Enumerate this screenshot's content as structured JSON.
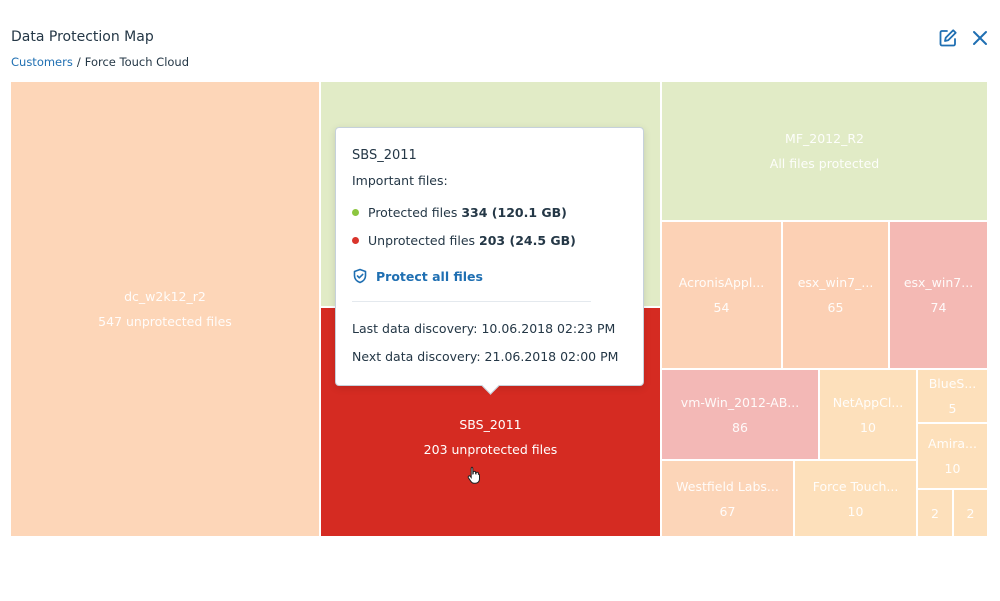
{
  "header": {
    "title": "Data Protection Map",
    "breadcrumb_root": "Customers",
    "breadcrumb_sep": "/",
    "breadcrumb_current": "Force Touch Cloud",
    "edit_icon": "edit-icon",
    "close_icon": "close-icon"
  },
  "colors": {
    "accent": "#1f6fb2",
    "protected": "#8cc63f",
    "unprotected": "#d9342b",
    "selected_tile": "#d52b22"
  },
  "tiles": [
    {
      "name": "dc_w2k12_r2",
      "detail": "547 unprotected files"
    },
    {
      "name": "SBS_2011",
      "detail": "203 unprotected files"
    },
    {
      "name": "MF_2012_R2",
      "detail": "All files protected"
    },
    {
      "name": "AcronisAppl...",
      "detail": "54"
    },
    {
      "name": "esx_win7_...",
      "detail": "65"
    },
    {
      "name": "esx_win7...",
      "detail": "74"
    },
    {
      "name": "vm-Win_2012-AB...",
      "detail": "86"
    },
    {
      "name": "NetAppCl...",
      "detail": "10"
    },
    {
      "name": "BlueS...",
      "detail": "5"
    },
    {
      "name": "Amira...",
      "detail": "10"
    },
    {
      "name": "Westfield Labs...",
      "detail": "67"
    },
    {
      "name": "Force Touch...",
      "detail": "10"
    },
    {
      "name": "",
      "detail": "2"
    },
    {
      "name": "",
      "detail": "2"
    }
  ],
  "tooltip": {
    "title": "SBS_2011",
    "subtitle": "Important files:",
    "protected_label": "Protected files",
    "protected_value": "334 (120.1 GB)",
    "unprotected_label": "Unprotected files",
    "unprotected_value": "203 (24.5 GB)",
    "action_label": "Protect all files",
    "action_icon": "shield-check-icon",
    "last_discovery": "Last data discovery: 10.06.2018 02:23 PM",
    "next_discovery": "Next data discovery: 21.06.2018 02:00 PM"
  },
  "cursor_icon": "hand-pointer-icon"
}
